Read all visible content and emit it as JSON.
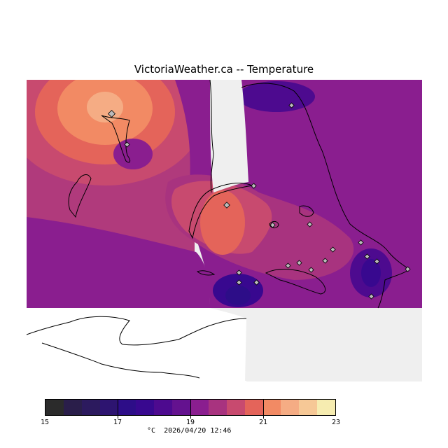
{
  "title": "VictoriaWeather.ca -- Temperature",
  "legend": {
    "min": 15,
    "max": 23,
    "tick_labels": [
      "15",
      "17",
      "19",
      "21",
      "23"
    ],
    "colors": [
      "#2b2b2b",
      "#2a1e4a",
      "#2c1a5e",
      "#2d1470",
      "#2d0d88",
      "#38088f",
      "#4d0a8f",
      "#64128f",
      "#8a1e8f",
      "#a8337f",
      "#c84a6f",
      "#e4645a",
      "#f28a64",
      "#f5ac84",
      "#f6c896",
      "#f6ecb0"
    ]
  },
  "footer": {
    "unit": "°C",
    "timestamp": "2026/04/20 12:46"
  },
  "map_colors": {
    "background": "#efefef",
    "water_white": "#ffffff",
    "coast_line": "#000000"
  },
  "stations_shown": 18
}
